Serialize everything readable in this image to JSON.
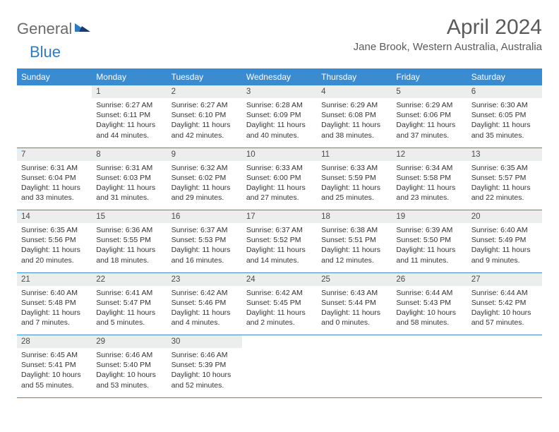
{
  "logo": {
    "general": "General",
    "blue": "Blue"
  },
  "title": "April 2024",
  "location": "Jane Brook, Western Australia, Australia",
  "colors": {
    "header_bg": "#3a8bd0",
    "header_text": "#ffffff",
    "daynum_bg": "#eceded",
    "text": "#333333",
    "title_text": "#5a5a5a",
    "logo_gray": "#6b6b6b",
    "logo_blue": "#2c7bc4",
    "border": "#3a8bd0"
  },
  "day_headers": [
    "Sunday",
    "Monday",
    "Tuesday",
    "Wednesday",
    "Thursday",
    "Friday",
    "Saturday"
  ],
  "weeks": [
    {
      "nums": [
        "",
        "1",
        "2",
        "3",
        "4",
        "5",
        "6"
      ],
      "infos": [
        null,
        {
          "sunrise": "Sunrise: 6:27 AM",
          "sunset": "Sunset: 6:11 PM",
          "daylight": "Daylight: 11 hours and 44 minutes."
        },
        {
          "sunrise": "Sunrise: 6:27 AM",
          "sunset": "Sunset: 6:10 PM",
          "daylight": "Daylight: 11 hours and 42 minutes."
        },
        {
          "sunrise": "Sunrise: 6:28 AM",
          "sunset": "Sunset: 6:09 PM",
          "daylight": "Daylight: 11 hours and 40 minutes."
        },
        {
          "sunrise": "Sunrise: 6:29 AM",
          "sunset": "Sunset: 6:08 PM",
          "daylight": "Daylight: 11 hours and 38 minutes."
        },
        {
          "sunrise": "Sunrise: 6:29 AM",
          "sunset": "Sunset: 6:06 PM",
          "daylight": "Daylight: 11 hours and 37 minutes."
        },
        {
          "sunrise": "Sunrise: 6:30 AM",
          "sunset": "Sunset: 6:05 PM",
          "daylight": "Daylight: 11 hours and 35 minutes."
        }
      ]
    },
    {
      "nums": [
        "7",
        "8",
        "9",
        "10",
        "11",
        "12",
        "13"
      ],
      "infos": [
        {
          "sunrise": "Sunrise: 6:31 AM",
          "sunset": "Sunset: 6:04 PM",
          "daylight": "Daylight: 11 hours and 33 minutes."
        },
        {
          "sunrise": "Sunrise: 6:31 AM",
          "sunset": "Sunset: 6:03 PM",
          "daylight": "Daylight: 11 hours and 31 minutes."
        },
        {
          "sunrise": "Sunrise: 6:32 AM",
          "sunset": "Sunset: 6:02 PM",
          "daylight": "Daylight: 11 hours and 29 minutes."
        },
        {
          "sunrise": "Sunrise: 6:33 AM",
          "sunset": "Sunset: 6:00 PM",
          "daylight": "Daylight: 11 hours and 27 minutes."
        },
        {
          "sunrise": "Sunrise: 6:33 AM",
          "sunset": "Sunset: 5:59 PM",
          "daylight": "Daylight: 11 hours and 25 minutes."
        },
        {
          "sunrise": "Sunrise: 6:34 AM",
          "sunset": "Sunset: 5:58 PM",
          "daylight": "Daylight: 11 hours and 23 minutes."
        },
        {
          "sunrise": "Sunrise: 6:35 AM",
          "sunset": "Sunset: 5:57 PM",
          "daylight": "Daylight: 11 hours and 22 minutes."
        }
      ]
    },
    {
      "nums": [
        "14",
        "15",
        "16",
        "17",
        "18",
        "19",
        "20"
      ],
      "infos": [
        {
          "sunrise": "Sunrise: 6:35 AM",
          "sunset": "Sunset: 5:56 PM",
          "daylight": "Daylight: 11 hours and 20 minutes."
        },
        {
          "sunrise": "Sunrise: 6:36 AM",
          "sunset": "Sunset: 5:55 PM",
          "daylight": "Daylight: 11 hours and 18 minutes."
        },
        {
          "sunrise": "Sunrise: 6:37 AM",
          "sunset": "Sunset: 5:53 PM",
          "daylight": "Daylight: 11 hours and 16 minutes."
        },
        {
          "sunrise": "Sunrise: 6:37 AM",
          "sunset": "Sunset: 5:52 PM",
          "daylight": "Daylight: 11 hours and 14 minutes."
        },
        {
          "sunrise": "Sunrise: 6:38 AM",
          "sunset": "Sunset: 5:51 PM",
          "daylight": "Daylight: 11 hours and 12 minutes."
        },
        {
          "sunrise": "Sunrise: 6:39 AM",
          "sunset": "Sunset: 5:50 PM",
          "daylight": "Daylight: 11 hours and 11 minutes."
        },
        {
          "sunrise": "Sunrise: 6:40 AM",
          "sunset": "Sunset: 5:49 PM",
          "daylight": "Daylight: 11 hours and 9 minutes."
        }
      ]
    },
    {
      "nums": [
        "21",
        "22",
        "23",
        "24",
        "25",
        "26",
        "27"
      ],
      "infos": [
        {
          "sunrise": "Sunrise: 6:40 AM",
          "sunset": "Sunset: 5:48 PM",
          "daylight": "Daylight: 11 hours and 7 minutes."
        },
        {
          "sunrise": "Sunrise: 6:41 AM",
          "sunset": "Sunset: 5:47 PM",
          "daylight": "Daylight: 11 hours and 5 minutes."
        },
        {
          "sunrise": "Sunrise: 6:42 AM",
          "sunset": "Sunset: 5:46 PM",
          "daylight": "Daylight: 11 hours and 4 minutes."
        },
        {
          "sunrise": "Sunrise: 6:42 AM",
          "sunset": "Sunset: 5:45 PM",
          "daylight": "Daylight: 11 hours and 2 minutes."
        },
        {
          "sunrise": "Sunrise: 6:43 AM",
          "sunset": "Sunset: 5:44 PM",
          "daylight": "Daylight: 11 hours and 0 minutes."
        },
        {
          "sunrise": "Sunrise: 6:44 AM",
          "sunset": "Sunset: 5:43 PM",
          "daylight": "Daylight: 10 hours and 58 minutes."
        },
        {
          "sunrise": "Sunrise: 6:44 AM",
          "sunset": "Sunset: 5:42 PM",
          "daylight": "Daylight: 10 hours and 57 minutes."
        }
      ]
    },
    {
      "nums": [
        "28",
        "29",
        "30",
        "",
        "",
        "",
        ""
      ],
      "infos": [
        {
          "sunrise": "Sunrise: 6:45 AM",
          "sunset": "Sunset: 5:41 PM",
          "daylight": "Daylight: 10 hours and 55 minutes."
        },
        {
          "sunrise": "Sunrise: 6:46 AM",
          "sunset": "Sunset: 5:40 PM",
          "daylight": "Daylight: 10 hours and 53 minutes."
        },
        {
          "sunrise": "Sunrise: 6:46 AM",
          "sunset": "Sunset: 5:39 PM",
          "daylight": "Daylight: 10 hours and 52 minutes."
        },
        null,
        null,
        null,
        null
      ]
    }
  ]
}
